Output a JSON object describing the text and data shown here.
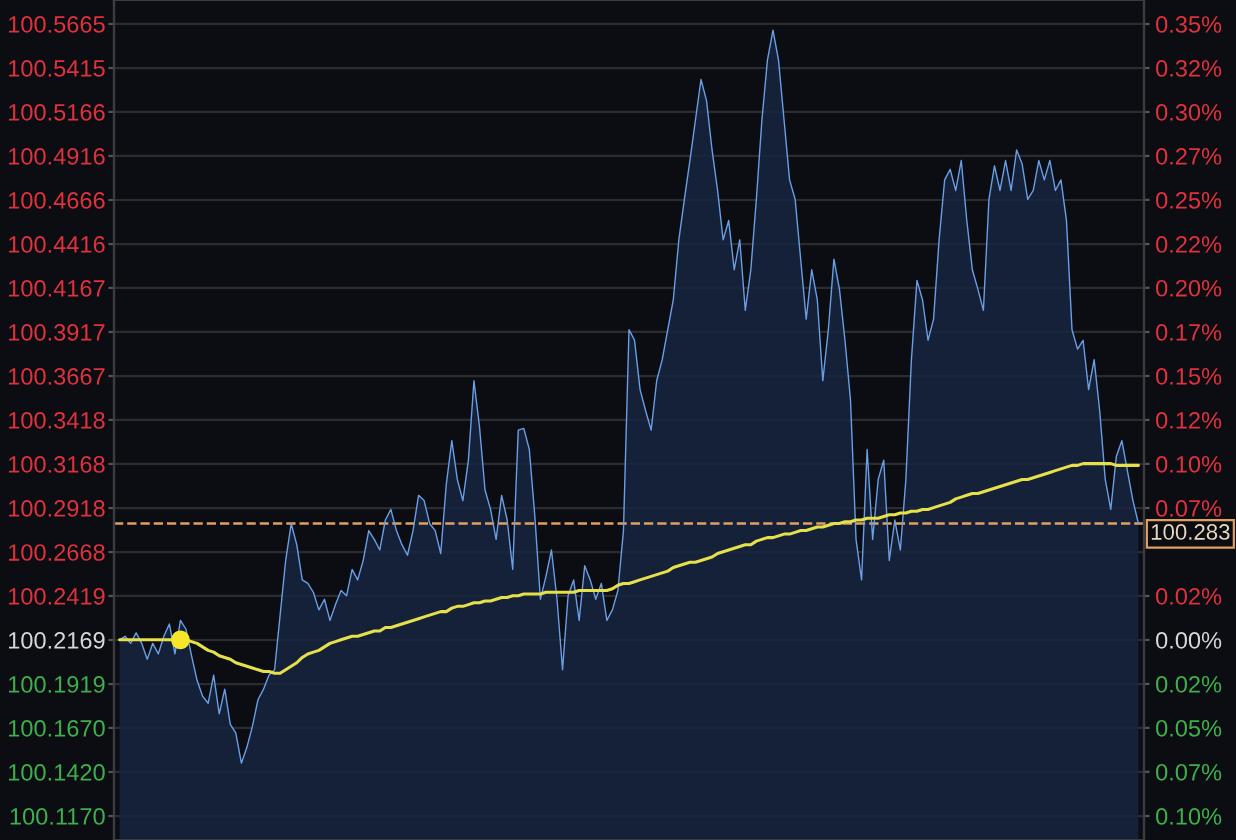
{
  "chart_data": {
    "type": "area",
    "categories": [
      null,
      null,
      null,
      null,
      null,
      null,
      null,
      null,
      null,
      null,
      null,
      null,
      null,
      null,
      null,
      null,
      null,
      null,
      null,
      null,
      null,
      null,
      null,
      null,
      null,
      null,
      null,
      null,
      null,
      null,
      null,
      null,
      null,
      null,
      null,
      null,
      null,
      null,
      null,
      null,
      null,
      null,
      null,
      null,
      null,
      null,
      null,
      null,
      null,
      null,
      null,
      null,
      null,
      null,
      null,
      null,
      null,
      null,
      null,
      null,
      null,
      null,
      null,
      null,
      null,
      null,
      null,
      null,
      null,
      null,
      null,
      null,
      null,
      null,
      null,
      null,
      null,
      null,
      null,
      null,
      null,
      null,
      null,
      null,
      null,
      null,
      null,
      null,
      null,
      null,
      null,
      null,
      null,
      null,
      null,
      null,
      null,
      null,
      null,
      null,
      null,
      null,
      null,
      null,
      null,
      null,
      null,
      null,
      null,
      null,
      null,
      null,
      null,
      null,
      null,
      null,
      null,
      null,
      null,
      null,
      null,
      null,
      null,
      null,
      null,
      null,
      null,
      null,
      null,
      null,
      null,
      null,
      null,
      null,
      null,
      null,
      null,
      null,
      null,
      null,
      null,
      null,
      null,
      null,
      null,
      null,
      null,
      null,
      null,
      null,
      null,
      null,
      null,
      null,
      null,
      null,
      null,
      null,
      null,
      null,
      null,
      null,
      null,
      null,
      null,
      null,
      null,
      null,
      null,
      null,
      null,
      null,
      null,
      null,
      null,
      null,
      null,
      null,
      null,
      null,
      null,
      null,
      null,
      null,
      null
    ],
    "series": [
      {
        "color": "#6a9fe6",
        "values": [
          100.217,
          100.219,
          100.215,
          100.221,
          100.215,
          100.206,
          100.215,
          100.209,
          100.219,
          100.226,
          100.209,
          100.228,
          100.223,
          100.208,
          100.194,
          100.185,
          100.181,
          100.197,
          100.175,
          100.189,
          100.169,
          100.164,
          100.147,
          100.156,
          100.168,
          100.183,
          100.189,
          100.197,
          100.2,
          100.231,
          100.262,
          100.283,
          100.271,
          100.251,
          100.249,
          100.244,
          100.234,
          100.24,
          100.228,
          100.237,
          100.245,
          100.242,
          100.257,
          100.251,
          100.262,
          100.279,
          100.274,
          100.268,
          100.285,
          100.291,
          100.279,
          100.271,
          100.265,
          100.279,
          100.299,
          100.296,
          100.283,
          100.279,
          100.266,
          100.305,
          100.33,
          100.308,
          100.296,
          100.319,
          100.364,
          100.338,
          100.302,
          100.291,
          100.274,
          100.299,
          100.285,
          100.257,
          100.336,
          100.337,
          100.325,
          100.287,
          100.24,
          100.253,
          100.268,
          100.24,
          100.2,
          100.242,
          100.251,
          100.228,
          100.259,
          100.251,
          100.24,
          100.249,
          100.228,
          100.234,
          100.245,
          100.279,
          100.393,
          100.387,
          100.359,
          100.347,
          100.336,
          100.364,
          100.376,
          100.393,
          100.41,
          100.444,
          100.467,
          100.489,
          100.512,
          100.535,
          100.523,
          100.495,
          100.472,
          100.444,
          100.455,
          100.427,
          100.444,
          100.404,
          100.427,
          100.467,
          100.512,
          100.546,
          100.563,
          100.546,
          100.512,
          100.478,
          100.467,
          100.433,
          100.399,
          100.427,
          100.41,
          100.364,
          100.393,
          100.433,
          100.416,
          100.387,
          100.353,
          100.274,
          100.251,
          100.325,
          100.274,
          100.308,
          100.319,
          100.262,
          100.285,
          100.268,
          100.308,
          100.376,
          100.421,
          100.41,
          100.387,
          100.399,
          100.444,
          100.478,
          100.484,
          100.472,
          100.489,
          100.455,
          100.427,
          100.416,
          100.404,
          100.467,
          100.486,
          100.472,
          100.489,
          100.472,
          100.495,
          100.487,
          100.467,
          100.472,
          100.489,
          100.478,
          100.489,
          100.472,
          100.478,
          100.455,
          100.393,
          100.382,
          100.387,
          100.359,
          100.376,
          100.347,
          100.308,
          100.291,
          100.321,
          100.33,
          100.313,
          100.296,
          100.283
        ]
      },
      {
        "type": "line",
        "color": "#e6e04a",
        "values": [
          100.217,
          100.217,
          100.217,
          100.217,
          100.217,
          100.217,
          100.217,
          100.217,
          100.217,
          100.217,
          100.217,
          100.217,
          100.217,
          100.216,
          100.215,
          100.213,
          100.211,
          100.21,
          100.208,
          100.207,
          100.206,
          100.204,
          100.203,
          100.202,
          100.201,
          100.2,
          100.199,
          100.199,
          100.198,
          100.198,
          100.2,
          100.202,
          100.204,
          100.207,
          100.209,
          100.21,
          100.211,
          100.213,
          100.215,
          100.216,
          100.217,
          100.218,
          100.219,
          100.219,
          100.22,
          100.221,
          100.222,
          100.222,
          100.224,
          100.224,
          100.225,
          100.226,
          100.227,
          100.228,
          100.229,
          100.23,
          100.231,
          100.232,
          100.233,
          100.233,
          100.235,
          100.236,
          100.236,
          100.237,
          100.238,
          100.238,
          100.239,
          100.239,
          100.24,
          100.241,
          100.241,
          100.242,
          100.242,
          100.243,
          100.243,
          100.243,
          100.243,
          100.244,
          100.244,
          100.244,
          100.244,
          100.244,
          100.244,
          100.245,
          100.245,
          100.245,
          100.245,
          100.245,
          100.245,
          100.246,
          100.248,
          100.249,
          100.249,
          100.25,
          100.251,
          100.252,
          100.253,
          100.254,
          100.255,
          100.256,
          100.258,
          100.259,
          100.26,
          100.261,
          100.261,
          100.262,
          100.263,
          100.264,
          100.266,
          100.267,
          100.268,
          100.269,
          100.27,
          100.271,
          100.271,
          100.273,
          100.274,
          100.275,
          100.275,
          100.276,
          100.277,
          100.277,
          100.278,
          100.279,
          100.279,
          100.28,
          100.281,
          100.281,
          100.282,
          100.283,
          100.283,
          100.284,
          100.284,
          100.285,
          100.285,
          100.286,
          100.286,
          100.286,
          100.287,
          100.288,
          100.288,
          100.289,
          100.289,
          100.29,
          100.29,
          100.291,
          100.291,
          100.292,
          100.293,
          100.294,
          100.295,
          100.297,
          100.298,
          100.299,
          100.3,
          100.3,
          100.301,
          100.302,
          100.303,
          100.304,
          100.305,
          100.306,
          100.307,
          100.308,
          100.308,
          100.309,
          100.31,
          100.311,
          100.312,
          100.313,
          100.314,
          100.315,
          100.316,
          100.316,
          100.317,
          100.317,
          100.317,
          100.317,
          100.317,
          100.317,
          100.316,
          100.316,
          100.316,
          100.316,
          100.316
        ]
      },
      {
        "type": "scatter",
        "color": "#f5e62a",
        "marker": "circle",
        "values": [
          null,
          null,
          null,
          null,
          null,
          null,
          null,
          null,
          null,
          null,
          null,
          100.217,
          null,
          null,
          null,
          null,
          null,
          null,
          null,
          null,
          null,
          null,
          null,
          null,
          null,
          null,
          null,
          null,
          null,
          null,
          null,
          null,
          null,
          null,
          null,
          null,
          null,
          null,
          null,
          null,
          null,
          null,
          null,
          null,
          null,
          null,
          null,
          null,
          null,
          null,
          null,
          null,
          null,
          null,
          null,
          null,
          null,
          null,
          null,
          null,
          null,
          null,
          null,
          null,
          null,
          null,
          null,
          null,
          null,
          null,
          null,
          null,
          null,
          null,
          null,
          null,
          null,
          null,
          null,
          null,
          null,
          null,
          null,
          null,
          null,
          null,
          null,
          null,
          null,
          null,
          null,
          null,
          null,
          null,
          null,
          null,
          null,
          null,
          null,
          null,
          null,
          null,
          null,
          null,
          null,
          null,
          null,
          null,
          null,
          null,
          null,
          null,
          null,
          null,
          null,
          null,
          null,
          null,
          null,
          null,
          null,
          null,
          null,
          null,
          null,
          null,
          null,
          null,
          null,
          null,
          null,
          null,
          null,
          null,
          null,
          null,
          null,
          null,
          null,
          null,
          null,
          null,
          null,
          null,
          null,
          null,
          null,
          null,
          null,
          null,
          null,
          null,
          null,
          null,
          null,
          null,
          null,
          null,
          null,
          null,
          null,
          null,
          null,
          null,
          null,
          null,
          null,
          null,
          null,
          null,
          null,
          null,
          null,
          null,
          null,
          null,
          null,
          null,
          null,
          null,
          null,
          null,
          null,
          null,
          null
        ]
      }
    ],
    "ylim": [
      100.1034,
      100.5801
    ],
    "yticks": [
      {
        "value": 100.5665,
        "label": "100.5665"
      },
      {
        "value": 100.5415,
        "label": "100.5415"
      },
      {
        "value": 100.5166,
        "label": "100.5166"
      },
      {
        "value": 100.4916,
        "label": "100.4916"
      },
      {
        "value": 100.4666,
        "label": "100.4666"
      },
      {
        "value": 100.4416,
        "label": "100.4416"
      },
      {
        "value": 100.4167,
        "label": "100.4167"
      },
      {
        "value": 100.3917,
        "label": "100.3917"
      },
      {
        "value": 100.3667,
        "label": "100.3667"
      },
      {
        "value": 100.3418,
        "label": "100.3418"
      },
      {
        "value": 100.3168,
        "label": "100.3168"
      },
      {
        "value": 100.2918,
        "label": "100.2918"
      },
      {
        "value": 100.2668,
        "label": "100.2668"
      },
      {
        "value": 100.2419,
        "label": "100.2419"
      },
      {
        "value": 100.2169,
        "label": "100.2169"
      },
      {
        "value": 100.1919,
        "label": "100.1919"
      },
      {
        "value": 100.167,
        "label": "100.1670"
      },
      {
        "value": 100.142,
        "label": "100.1420"
      },
      {
        "value": 100.117,
        "label": "100.1170"
      }
    ],
    "y2lim": [
      -0.1133,
      0.3624
    ],
    "y2ticks": [
      {
        "value": 0.3488,
        "label": "0.35%"
      },
      {
        "value": 0.3239,
        "label": "0.32%"
      },
      {
        "value": 0.299,
        "label": "0.30%"
      },
      {
        "value": 0.2741,
        "label": "0.27%"
      },
      {
        "value": 0.2492,
        "label": "0.25%"
      },
      {
        "value": 0.2242,
        "label": "0.22%"
      },
      {
        "value": 0.1994,
        "label": "0.20%"
      },
      {
        "value": 0.1744,
        "label": "0.17%"
      },
      {
        "value": 0.1495,
        "label": "0.15%"
      },
      {
        "value": 0.1246,
        "label": "0.12%"
      },
      {
        "value": 0.0997,
        "label": "0.10%"
      },
      {
        "value": 0.0747,
        "label": "0.07%"
      },
      {
        "value": 0.0249,
        "label": "0.02%"
      },
      {
        "value": 0,
        "label": "0.00%"
      },
      {
        "value": -0.0249,
        "label": "0.02%"
      },
      {
        "value": -0.0498,
        "label": "0.05%"
      },
      {
        "value": -0.0747,
        "label": "0.07%"
      },
      {
        "value": -0.0997,
        "label": "0.10%"
      }
    ],
    "ref_lines": [
      {
        "axis": "y",
        "value": 100.283,
        "label": "100.283",
        "color": "#e0a060",
        "line_style": "dashed"
      }
    ],
    "grid": "y",
    "legend": false
  }
}
